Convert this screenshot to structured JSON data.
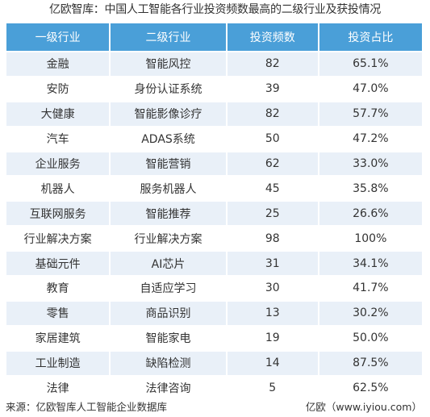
{
  "title": "亿欧智库：中国人工智能各行业投资频数最高的二级行业及获投情况",
  "table": {
    "headers": [
      "一级行业",
      "二级行业",
      "投资频数",
      "投资占比"
    ]
  },
  "chart_data": {
    "type": "table",
    "columns": [
      "一级行业",
      "二级行业",
      "投资频数",
      "投资占比"
    ],
    "rows": [
      [
        "金融",
        "智能风控",
        82,
        "65.1%"
      ],
      [
        "安防",
        "身份认证系统",
        39,
        "47.0%"
      ],
      [
        "大健康",
        "智能影像诊疗",
        82,
        "57.7%"
      ],
      [
        "汽车",
        "ADAS系统",
        50,
        "47.2%"
      ],
      [
        "企业服务",
        "智能营销",
        62,
        "33.0%"
      ],
      [
        "机器人",
        "服务机器人",
        45,
        "35.8%"
      ],
      [
        "互联网服务",
        "智能推荐",
        25,
        "26.6%"
      ],
      [
        "行业解决方案",
        "行业解决方案",
        98,
        "100%"
      ],
      [
        "基础元件",
        "AI芯片",
        31,
        "34.1%"
      ],
      [
        "教育",
        "自适应学习",
        30,
        "41.7%"
      ],
      [
        "零售",
        "商品识别",
        13,
        "30.2%"
      ],
      [
        "家居建筑",
        "智能家电",
        19,
        "50.0%"
      ],
      [
        "工业制造",
        "缺陷检测",
        14,
        "87.5%"
      ],
      [
        "法律",
        "法律咨询",
        5,
        "62.5%"
      ]
    ]
  },
  "footer": {
    "source": "来源：亿欧智库人工智能企业数据库",
    "brand": "亿欧（www.iyiou.com）"
  },
  "colors": {
    "header_bg": "#4a9fd8",
    "stripe_bg": "#e9f0f8"
  }
}
